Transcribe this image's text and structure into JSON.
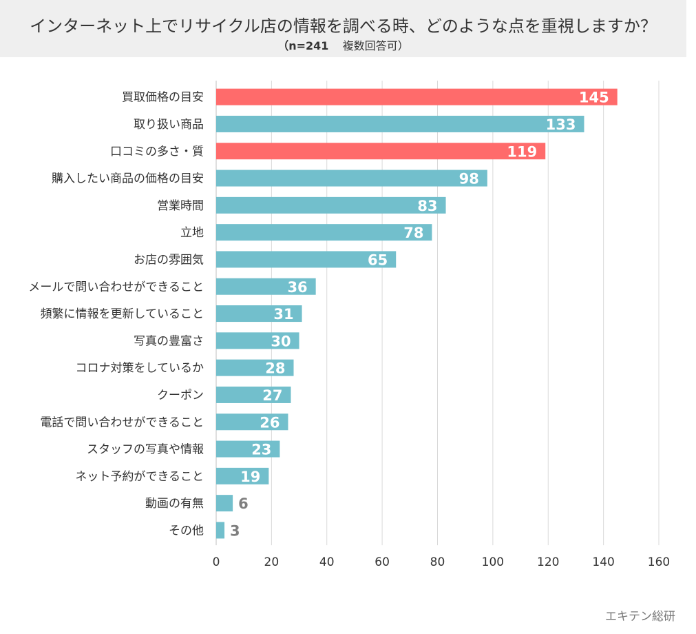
{
  "header": {
    "title": "インターネット上でリサイクル店の情報を調べる時、どのような点を重視しますか？",
    "subtitle_n": "（n=241",
    "subtitle_rest": "複数回答可）"
  },
  "source": "エキテン総研",
  "colors": {
    "highlight": "#ff6b6b",
    "normal": "#72bfcc",
    "grid": "#d9d9d9",
    "header_bg": "#efefef"
  },
  "chart_data": {
    "type": "bar",
    "orientation": "horizontal",
    "categories": [
      "買取価格の目安",
      "取り扱い商品",
      "口コミの多さ・質",
      "購入したい商品の価格の目安",
      "営業時間",
      "立地",
      "お店の雰囲気",
      "メールで問い合わせができること",
      "頻繁に情報を更新していること",
      "写真の豊富さ",
      "コロナ対策をしているか",
      "クーポン",
      "電話で問い合わせができること",
      "スタッフの写真や情報",
      "ネット予約ができること",
      "動画の有無",
      "その他"
    ],
    "values": [
      145,
      133,
      119,
      98,
      83,
      78,
      65,
      36,
      31,
      30,
      28,
      27,
      26,
      23,
      19,
      6,
      3
    ],
    "highlighted": [
      true,
      false,
      true,
      false,
      false,
      false,
      false,
      false,
      false,
      false,
      false,
      false,
      false,
      false,
      false,
      false,
      false
    ],
    "xlim": [
      0,
      160
    ],
    "xticks": [
      0,
      20,
      40,
      60,
      80,
      100,
      120,
      140,
      160
    ],
    "grid": true
  }
}
